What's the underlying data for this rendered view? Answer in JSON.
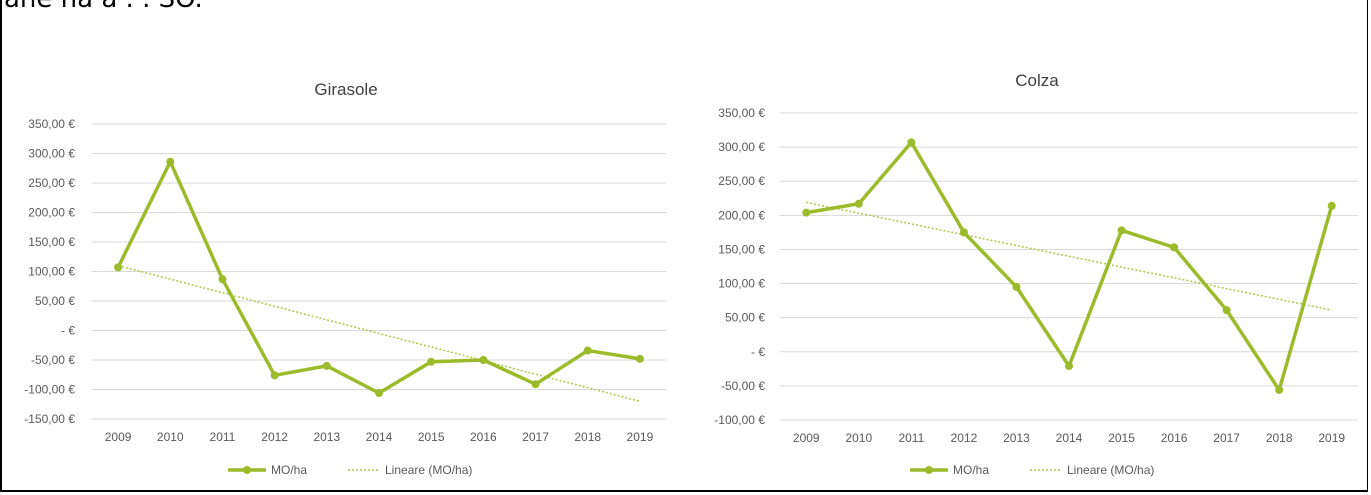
{
  "page": {
    "top_text": "ane ha a . . SO."
  },
  "colors": {
    "series": "#9BBB2A",
    "trend": "#A9C94A",
    "grid": "#D9D9D9",
    "text": "#595959"
  },
  "chart_data": [
    {
      "type": "line",
      "title": "Girasole",
      "categories": [
        "2009",
        "2010",
        "2011",
        "2012",
        "2013",
        "2014",
        "2015",
        "2016",
        "2017",
        "2018",
        "2019"
      ],
      "series": [
        {
          "name": "MO/ha",
          "values": [
            107,
            286,
            87,
            -76,
            -60,
            -106,
            -53,
            -50,
            -91,
            -34,
            -48
          ]
        }
      ],
      "trendline": {
        "name": "Lineare (MO/ha)",
        "start": 110,
        "end": -120
      },
      "yticks": [
        "350,00 €",
        "300,00 €",
        "250,00 €",
        "200,00 €",
        "150,00 €",
        "100,00 €",
        "50,00 €",
        "- €",
        "-50,00 €",
        "-100,00 €",
        "-150,00 €"
      ],
      "ylim": [
        -150,
        350
      ],
      "legend": "bottom",
      "grid": true
    },
    {
      "type": "line",
      "title": "Colza",
      "categories": [
        "2009",
        "2010",
        "2011",
        "2012",
        "2013",
        "2014",
        "2015",
        "2016",
        "2017",
        "2018",
        "2019"
      ],
      "series": [
        {
          "name": "MO/ha",
          "values": [
            204,
            217,
            307,
            175,
            95,
            -21,
            178,
            153,
            61,
            -56,
            214
          ]
        }
      ],
      "trendline": {
        "name": "Lineare (MO/ha)",
        "start": 219,
        "end": 61
      },
      "yticks": [
        "350,00 €",
        "300,00 €",
        "250,00 €",
        "200,00 €",
        "150,00 €",
        "100,00 €",
        "50,00 €",
        "- €",
        "-50,00 €",
        "-100,00 €"
      ],
      "ylim": [
        -100,
        350
      ],
      "legend": "bottom",
      "grid": true
    }
  ]
}
